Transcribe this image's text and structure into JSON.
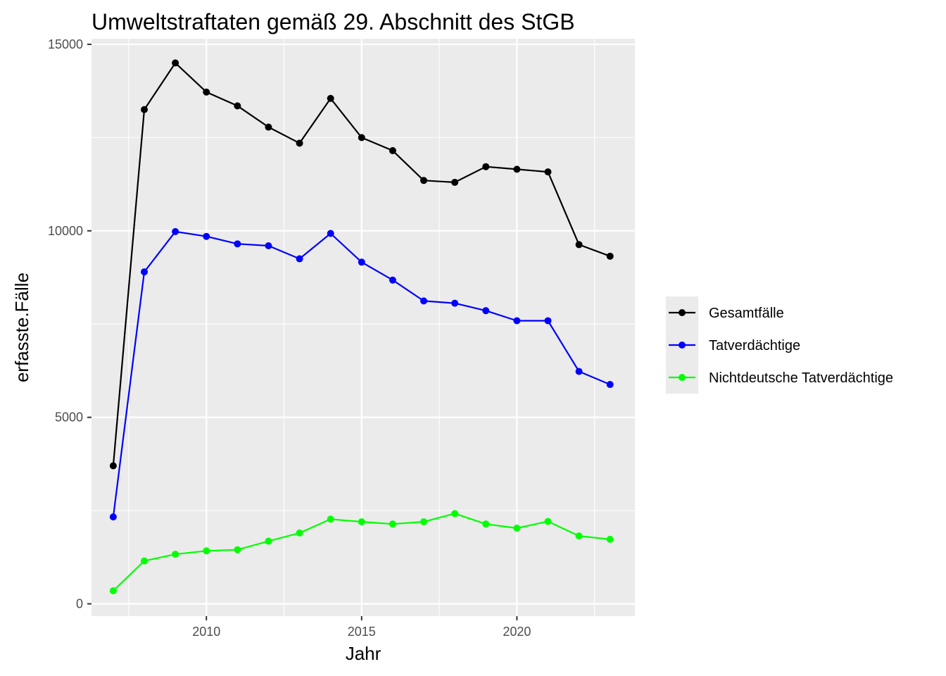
{
  "chart_data": {
    "type": "line",
    "title": "Umweltstraftaten gemäß 29. Abschnitt des StGB",
    "xlabel": "Jahr",
    "ylabel": "erfasste.Fälle",
    "x": [
      2007,
      2008,
      2009,
      2010,
      2011,
      2012,
      2013,
      2014,
      2015,
      2016,
      2017,
      2018,
      2019,
      2020,
      2021,
      2022,
      2023
    ],
    "xlim": [
      2006.3,
      2023.8
    ],
    "ylim": [
      -330,
      15150
    ],
    "x_ticks": [
      2010,
      2015,
      2020
    ],
    "x_tick_labels": [
      "2010",
      "2015",
      "2020"
    ],
    "y_ticks": [
      0,
      5000,
      10000,
      15000
    ],
    "y_tick_labels": [
      "0",
      "5000",
      "10000",
      "15000"
    ],
    "grid": true,
    "legend_position": "right",
    "series": [
      {
        "name": "Gesamtfälle",
        "color": "#000000",
        "values": [
          3700,
          13250,
          14500,
          13720,
          13350,
          12780,
          12350,
          13550,
          12500,
          12150,
          11350,
          11300,
          11720,
          11650,
          11580,
          9630,
          9320
        ]
      },
      {
        "name": "Tatverdächtige",
        "color": "#0000ff",
        "values": [
          2330,
          8900,
          9980,
          9850,
          9650,
          9600,
          9250,
          9930,
          9160,
          8680,
          8120,
          8060,
          7860,
          7590,
          7590,
          6230,
          5880
        ]
      },
      {
        "name": "Nichtdeutsche Tatverdächtige",
        "color": "#00ff00",
        "values": [
          350,
          1150,
          1330,
          1420,
          1450,
          1680,
          1900,
          2270,
          2200,
          2140,
          2200,
          2420,
          2140,
          2030,
          2210,
          1820,
          1730
        ]
      }
    ]
  }
}
